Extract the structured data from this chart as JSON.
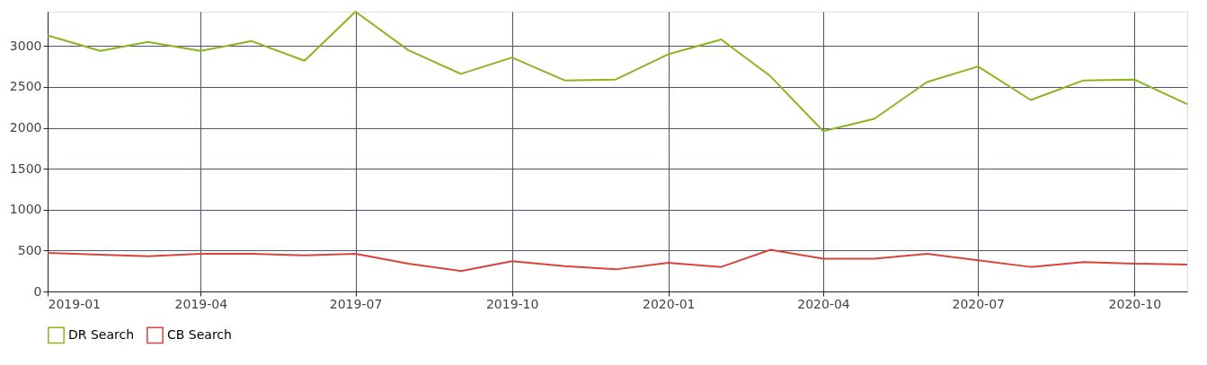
{
  "chart_data": {
    "type": "line",
    "x": [
      "2019-01",
      "2019-02",
      "2019-03",
      "2019-04",
      "2019-05",
      "2019-06",
      "2019-07",
      "2019-08",
      "2019-09",
      "2019-10",
      "2019-11",
      "2019-12",
      "2020-01",
      "2020-02",
      "2020-03",
      "2020-04",
      "2020-05",
      "2020-06",
      "2020-07",
      "2020-08",
      "2020-09",
      "2020-10",
      "2020-11"
    ],
    "series": [
      {
        "name": "DR Search",
        "color": "#8db31f",
        "values": [
          3130,
          2940,
          3050,
          2940,
          3060,
          2820,
          3420,
          2950,
          2660,
          2860,
          2580,
          2590,
          2900,
          3080,
          2630,
          1960,
          2110,
          2560,
          2750,
          2340,
          2580,
          2590,
          2290
        ]
      },
      {
        "name": "CB Search",
        "color": "#d9443a",
        "values": [
          470,
          450,
          430,
          460,
          460,
          440,
          460,
          340,
          250,
          370,
          310,
          270,
          350,
          300,
          510,
          400,
          400,
          460,
          380,
          300,
          360,
          340,
          330
        ]
      }
    ],
    "xlim": [
      "2019-01",
      "2020-11"
    ],
    "xticks": [
      "2019-01",
      "2019-04",
      "2019-07",
      "2019-10",
      "2020-01",
      "2020-04",
      "2020-07",
      "2020-10"
    ],
    "ylim": [
      0,
      3420
    ],
    "yticks": [
      0,
      500,
      1000,
      1500,
      2000,
      2500,
      3000
    ],
    "grid": true,
    "legend": "bottom",
    "marker": "none",
    "line_style": "solid"
  }
}
